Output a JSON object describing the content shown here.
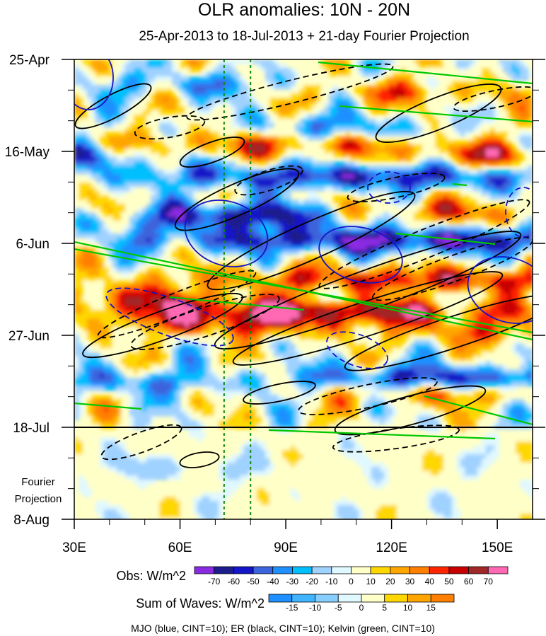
{
  "chart_data": {
    "type": "heatmap",
    "title": "OLR anomalies: 10N - 20N",
    "subtitle": "25-Apr-2013 to 18-Jul-2013 + 21-day Fourier Projection",
    "x_axis": {
      "label": "",
      "range": [
        30,
        160
      ],
      "ticks": [
        30,
        60,
        90,
        120,
        150
      ],
      "tick_labels": [
        "30E",
        "60E",
        "90E",
        "120E",
        "150E"
      ]
    },
    "y_axis": {
      "label": "",
      "ticks": [
        "25-Apr",
        "16-May",
        "6-Jun",
        "27-Jun",
        "18-Jul",
        "8-Aug"
      ],
      "tick_days": [
        0,
        21,
        42,
        63,
        84,
        105
      ]
    },
    "observed_end": "18-Jul",
    "projection_label": "Fourier Projection",
    "reference_lines_lon": [
      72.5,
      80
    ],
    "obs_colorbar": {
      "label": "Obs: W/m^2",
      "levels": [
        "-70",
        "-60",
        "-50",
        "-40",
        "-30",
        "-20",
        "-10",
        "0",
        "10",
        "20",
        "30",
        "40",
        "50",
        "60",
        "70"
      ],
      "colors": [
        "#8a2be2",
        "#1c1c8c",
        "#1414c8",
        "#3c64dc",
        "#1e90ff",
        "#00bfff",
        "#a0d2ff",
        "#e0f8ff",
        "#ffffc8",
        "#ffd700",
        "#ffa500",
        "#ff7f00",
        "#ff2400",
        "#c80000",
        "#a02828",
        "#ff69b4"
      ]
    },
    "waves_colorbar": {
      "label": "Sum of Waves: W/m^2",
      "levels": [
        "-15",
        "-10",
        "-5",
        "0",
        "5",
        "10",
        "15"
      ],
      "colors": [
        "#1e90ff",
        "#40b4ff",
        "#87ceff",
        "#e0f8ff",
        "#ffffc8",
        "#ffd700",
        "#ffa500",
        "#ff7f00"
      ]
    },
    "contours_legend": "MJO (blue, CINT=10); ER (black, CINT=10); Kelvin (green, CINT=10)",
    "series": [
      {
        "name": "MJO",
        "color": "#1414c8",
        "cint": 10
      },
      {
        "name": "ER",
        "color": "#000000",
        "cint": 10
      },
      {
        "name": "Kelvin",
        "color": "#00c800",
        "cint": 10
      }
    ]
  }
}
